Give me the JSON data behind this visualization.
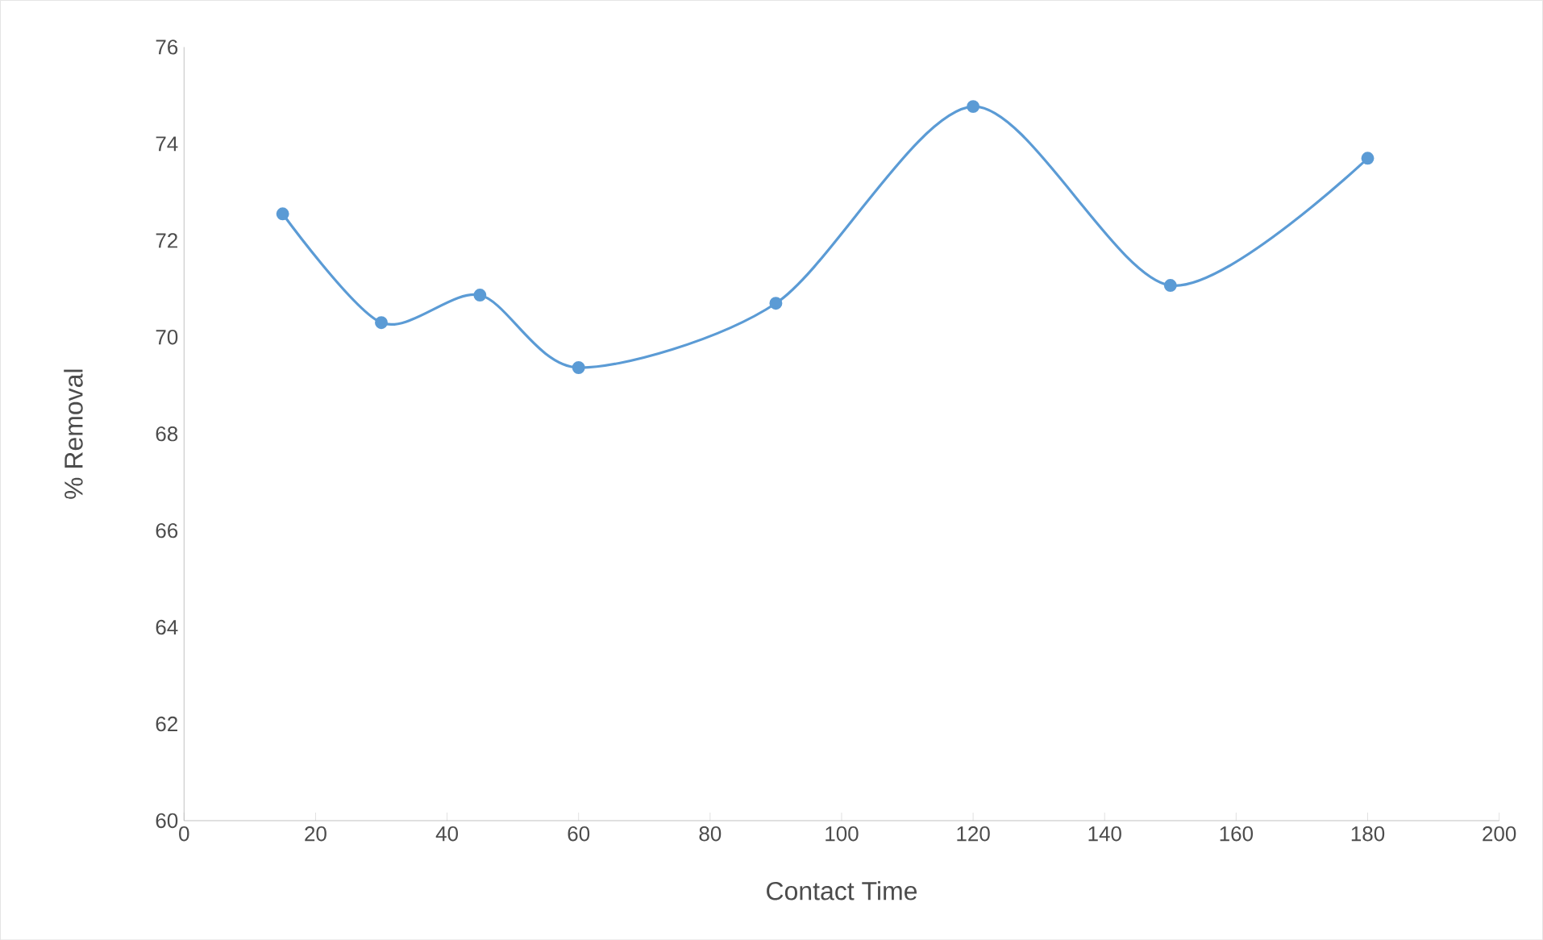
{
  "chart_data": {
    "type": "line",
    "xlabel": "Contact Time",
    "ylabel": "% Removal",
    "x": [
      15,
      30,
      45,
      60,
      90,
      120,
      150,
      180
    ],
    "series": [
      {
        "color": "#5b9bd5",
        "values": [
          72.55,
          70.3,
          70.87,
          69.37,
          70.7,
          74.77,
          71.07,
          73.7
        ]
      }
    ],
    "xlim": [
      0,
      200
    ],
    "xticks": [
      0,
      20,
      40,
      60,
      80,
      100,
      120,
      140,
      160,
      180,
      200
    ],
    "ylim": [
      60,
      76
    ],
    "yticks": [
      60,
      62,
      64,
      66,
      68,
      70,
      72,
      74,
      76
    ],
    "grid": false,
    "marker": "circle",
    "line_style": "solid"
  }
}
